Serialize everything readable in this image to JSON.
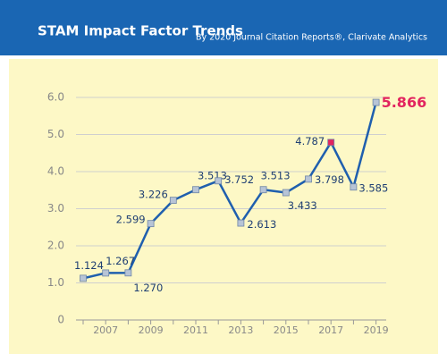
{
  "chart_data": {
    "type": "line",
    "title": "STAM Impact Factor Trends",
    "subtitle": "By 2020 Journal Citation Reports®, Clarivate Analytics",
    "categories": [
      null,
      "2007",
      null,
      "2009",
      null,
      "2011",
      null,
      "2013",
      null,
      "2015",
      null,
      "2017",
      null,
      "2019"
    ],
    "series": [
      {
        "name": "Impact Factor",
        "color": "#1f5fae",
        "values": [
          1.124,
          1.267,
          1.27,
          2.599,
          3.226,
          3.513,
          3.752,
          2.613,
          3.513,
          3.433,
          3.798,
          4.787,
          3.585,
          5.866
        ],
        "value_labels": [
          "1.124",
          "1.267",
          "1.270",
          "2.599",
          "3.226",
          "3.513",
          "3.752",
          "2.613",
          "3.513",
          "3.433",
          "3.798",
          "4.787",
          "3.585",
          "5.866"
        ],
        "marker_colors": [
          "#b7c4d6",
          "#b7c4d6",
          "#b7c4d6",
          "#b7c4d6",
          "#b7c4d6",
          "#b7c4d6",
          "#b7c4d6",
          "#b7c4d6",
          "#b7c4d6",
          "#b7c4d6",
          "#b7c4d6",
          "#e2245f",
          "#b7c4d6",
          "#b7c4d6"
        ],
        "value_label_colors": [
          "#1f3f73",
          "#1f3f73",
          "#1f3f73",
          "#1f3f73",
          "#1f3f73",
          "#1f3f73",
          "#1f3f73",
          "#1f3f73",
          "#1f3f73",
          "#1f3f73",
          "#1f3f73",
          "#1f3f73",
          "#1f3f73",
          "#e2245f"
        ]
      }
    ],
    "ylim": [
      0,
      6
    ],
    "yticks": [
      0,
      {
        "value": 1,
        "label": "1.0"
      },
      {
        "value": 2,
        "label": "2.0"
      },
      {
        "value": 3,
        "label": "3.0"
      },
      {
        "value": 4,
        "label": "4.0"
      },
      {
        "value": 5,
        "label": "5.0"
      },
      {
        "value": 6,
        "label": "6.0"
      }
    ],
    "grid": true
  }
}
